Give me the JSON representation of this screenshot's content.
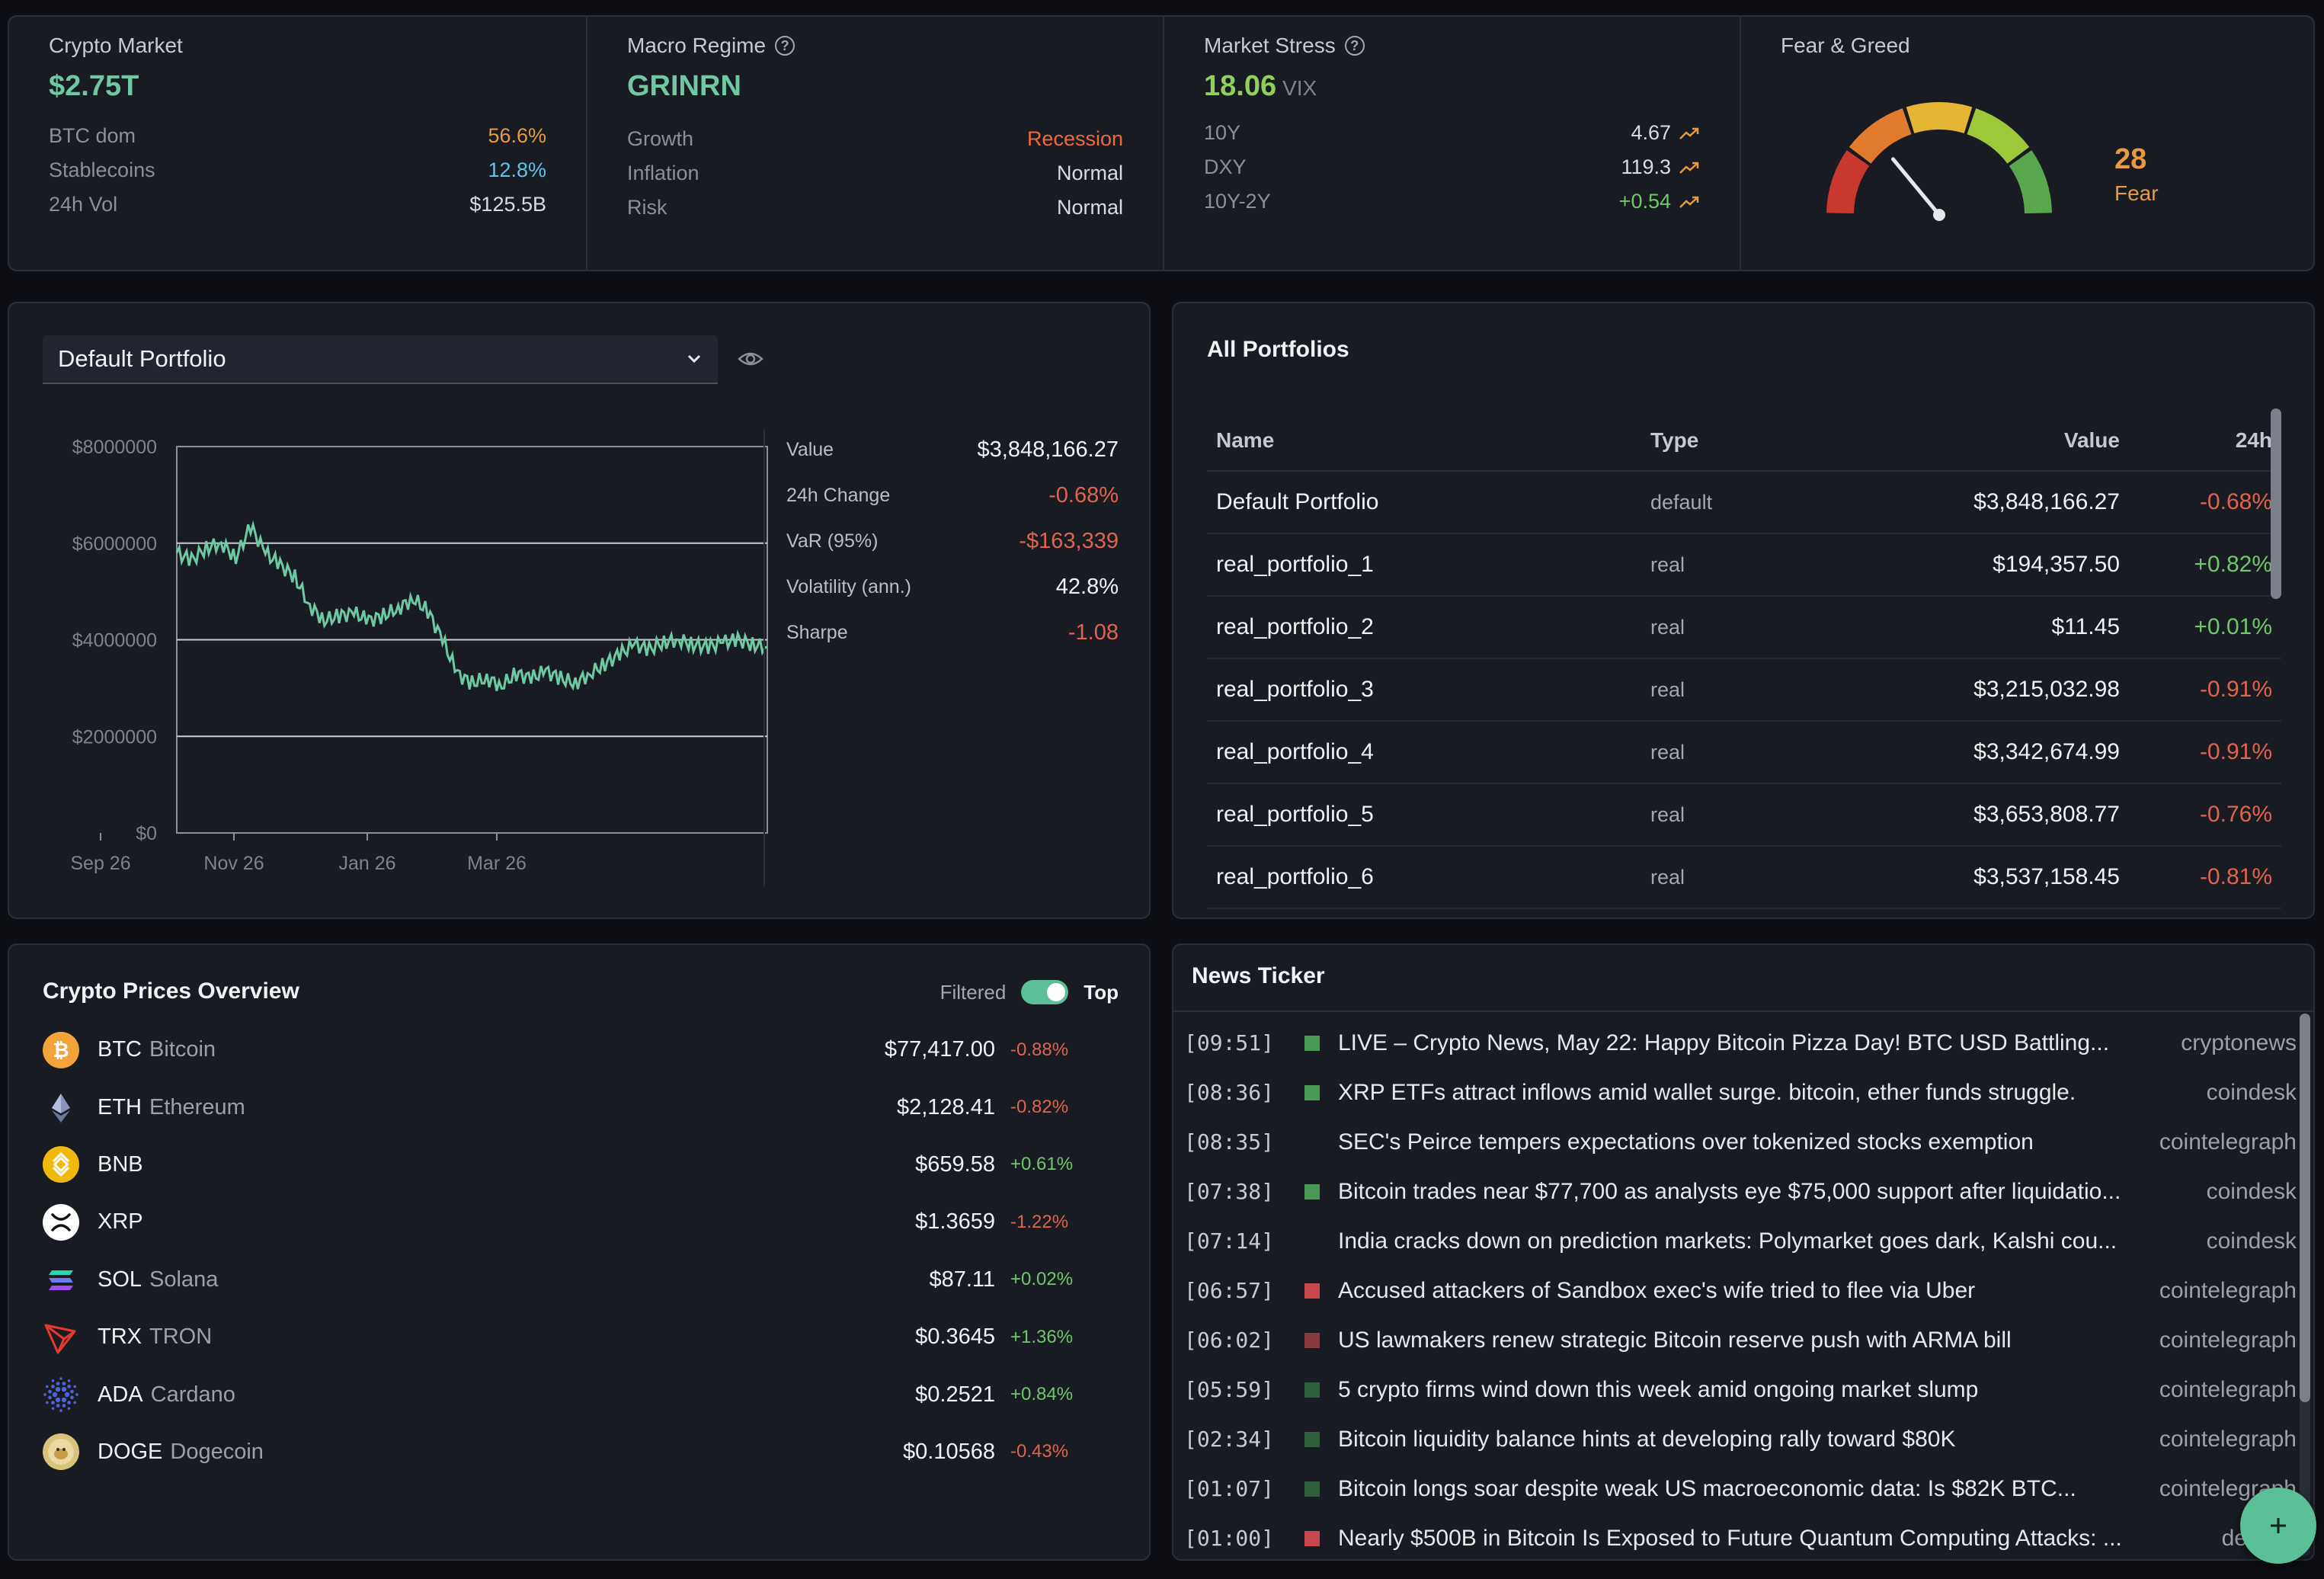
{
  "top": {
    "crypto_market": {
      "label": "Crypto Market",
      "value": "$2.75T",
      "rows": [
        {
          "k": "BTC dom",
          "v": "56.6%",
          "color": "orange"
        },
        {
          "k": "Stablecoins",
          "v": "12.8%",
          "color": "blue"
        },
        {
          "k": "24h Vol",
          "v": "$125.5B",
          "color": "default"
        }
      ]
    },
    "macro_regime": {
      "label": "Macro Regime",
      "value": "GRINRN",
      "rows": [
        {
          "k": "Growth",
          "v": "Recession",
          "color": "redorange"
        },
        {
          "k": "Inflation",
          "v": "Normal",
          "color": "default"
        },
        {
          "k": "Risk",
          "v": "Normal",
          "color": "default"
        }
      ]
    },
    "market_stress": {
      "label": "Market Stress",
      "value": "18.06",
      "unit": "VIX",
      "rows": [
        {
          "k": "10Y",
          "v": "4.67",
          "color": "default",
          "icon": "trend-up-icon"
        },
        {
          "k": "DXY",
          "v": "119.3",
          "color": "default",
          "icon": "trend-up-icon"
        },
        {
          "k": "10Y-2Y",
          "v": "+0.54",
          "color": "green",
          "icon": "trend-up-icon"
        }
      ]
    },
    "fear_greed": {
      "label": "Fear & Greed",
      "value": "28",
      "level": "Fear",
      "score": 28,
      "max": 100,
      "colors": [
        "#c8382f",
        "#e27a2e",
        "#e5b534",
        "#9cc839",
        "#5aa64c"
      ],
      "accent": "#e89a43"
    }
  },
  "portfolio": {
    "selected": "Default Portfolio",
    "chart_data": {
      "type": "line",
      "y_ticks": [
        "$8000000",
        "$6000000",
        "$4000000",
        "$2000000",
        "$0"
      ],
      "x_ticks": [
        "Sep 26",
        "Nov 26",
        "Jan 26",
        "Mar 26"
      ],
      "ylim": [
        0,
        8000000
      ],
      "color": "#6ec9a2",
      "x": [
        0,
        10,
        20,
        30,
        40,
        50,
        60,
        70,
        80,
        90,
        100,
        110,
        120,
        130,
        140,
        150,
        160,
        170,
        180,
        190,
        200,
        210,
        220,
        230,
        240,
        250,
        260,
        270,
        280,
        290,
        300,
        310,
        320,
        330,
        340,
        350,
        360,
        370,
        380,
        390,
        400
      ],
      "values": [
        5800000,
        5650000,
        5900000,
        6000000,
        5700000,
        6350000,
        5800000,
        5550000,
        5300000,
        4700000,
        4400000,
        4500000,
        4550000,
        4400000,
        4500000,
        4650000,
        4850000,
        4600000,
        4000000,
        3300000,
        3100000,
        3200000,
        3050000,
        3300000,
        3200000,
        3350000,
        3200000,
        3100000,
        3300000,
        3500000,
        3700000,
        3900000,
        3800000,
        3950000,
        4000000,
        3900000,
        3850000,
        3950000,
        4000000,
        3900000,
        3850000
      ]
    },
    "stats": [
      {
        "k": "Value",
        "v": "$3,848,166.27",
        "color": "default"
      },
      {
        "k": "24h Change",
        "v": "-0.68%",
        "color": "red"
      },
      {
        "k": "VaR (95%)",
        "v": "-$163,339",
        "color": "red"
      },
      {
        "k": "Volatility (ann.)",
        "v": "42.8%",
        "color": "default"
      },
      {
        "k": "Sharpe",
        "v": "-1.08",
        "color": "red"
      }
    ]
  },
  "all_portfolios": {
    "title": "All Portfolios",
    "headers": {
      "name": "Name",
      "type": "Type",
      "value": "Value",
      "change": "24h"
    },
    "rows": [
      {
        "name": "Default Portfolio",
        "type": "default",
        "value": "$3,848,166.27",
        "change": "-0.68%",
        "color": "red"
      },
      {
        "name": "real_portfolio_1",
        "type": "real",
        "value": "$194,357.50",
        "change": "+0.82%",
        "color": "green"
      },
      {
        "name": "real_portfolio_2",
        "type": "real",
        "value": "$11.45",
        "change": "+0.01%",
        "color": "green"
      },
      {
        "name": "real_portfolio_3",
        "type": "real",
        "value": "$3,215,032.98",
        "change": "-0.91%",
        "color": "red"
      },
      {
        "name": "real_portfolio_4",
        "type": "real",
        "value": "$3,342,674.99",
        "change": "-0.91%",
        "color": "red"
      },
      {
        "name": "real_portfolio_5",
        "type": "real",
        "value": "$3,653,808.77",
        "change": "-0.76%",
        "color": "red"
      },
      {
        "name": "real_portfolio_6",
        "type": "real",
        "value": "$3,537,158.45",
        "change": "-0.81%",
        "color": "red"
      }
    ]
  },
  "crypto_prices": {
    "title": "Crypto Prices Overview",
    "toggle_off_label": "Filtered",
    "toggle_on_label": "Top",
    "coins": [
      {
        "symbol": "BTC",
        "name": "Bitcoin",
        "price": "$77,417.00",
        "change": "-0.88%",
        "color": "red",
        "icon": "bitcoin-icon"
      },
      {
        "symbol": "ETH",
        "name": "Ethereum",
        "price": "$2,128.41",
        "change": "-0.82%",
        "color": "red",
        "icon": "ethereum-icon"
      },
      {
        "symbol": "BNB",
        "name": "",
        "price": "$659.58",
        "change": "+0.61%",
        "color": "green",
        "icon": "bnb-icon"
      },
      {
        "symbol": "XRP",
        "name": "",
        "price": "$1.3659",
        "change": "-1.22%",
        "color": "red",
        "icon": "xrp-icon"
      },
      {
        "symbol": "SOL",
        "name": "Solana",
        "price": "$87.11",
        "change": "+0.02%",
        "color": "green",
        "icon": "solana-icon"
      },
      {
        "symbol": "TRX",
        "name": "TRON",
        "price": "$0.3645",
        "change": "+1.36%",
        "color": "green",
        "icon": "tron-icon"
      },
      {
        "symbol": "ADA",
        "name": "Cardano",
        "price": "$0.2521",
        "change": "+0.84%",
        "color": "green",
        "icon": "cardano-icon"
      },
      {
        "symbol": "DOGE",
        "name": "Dogecoin",
        "price": "$0.10568",
        "change": "-0.43%",
        "color": "red",
        "icon": "dogecoin-icon"
      }
    ]
  },
  "news": {
    "title": "News Ticker",
    "items": [
      {
        "time": "[09:51]",
        "sentiment": "positive",
        "text": "LIVE – Crypto News, May 22: Happy Bitcoin Pizza Day! BTC USD Battling...",
        "source": "cryptonews"
      },
      {
        "time": "[08:36]",
        "sentiment": "positive",
        "text": "XRP ETFs attract inflows amid wallet surge. bitcoin, ether funds struggle.",
        "source": "coindesk"
      },
      {
        "time": "[08:35]",
        "sentiment": "neutral",
        "text": "SEC's Peirce tempers expectations over tokenized stocks exemption",
        "source": "cointelegraph"
      },
      {
        "time": "[07:38]",
        "sentiment": "positive",
        "text": "Bitcoin trades near $77,700 as analysts eye $75,000 support after liquidatio...",
        "source": "coindesk"
      },
      {
        "time": "[07:14]",
        "sentiment": "neutral",
        "text": "India cracks down on prediction markets: Polymarket goes dark, Kalshi cou...",
        "source": "coindesk"
      },
      {
        "time": "[06:57]",
        "sentiment": "negative",
        "text": "Accused attackers of Sandbox exec's wife tried to flee via Uber",
        "source": "cointelegraph"
      },
      {
        "time": "[06:02]",
        "sentiment": "negative-dim",
        "text": "US lawmakers renew strategic Bitcoin reserve push with ARMA bill",
        "source": "cointelegraph"
      },
      {
        "time": "[05:59]",
        "sentiment": "positive-dim",
        "text": "5 crypto firms wind down this week amid ongoing market slump",
        "source": "cointelegraph"
      },
      {
        "time": "[02:34]",
        "sentiment": "positive-dim",
        "text": "Bitcoin liquidity balance hints at developing rally toward $80K",
        "source": "cointelegraph"
      },
      {
        "time": "[01:07]",
        "sentiment": "positive-dim",
        "text": "Bitcoin longs soar despite weak US macroeconomic data: Is $82K BTC...",
        "source": "cointelegraph"
      },
      {
        "time": "[01:00]",
        "sentiment": "negative",
        "text": "Nearly $500B in Bitcoin Is Exposed to Future Quantum Computing Attacks: ...",
        "source": "decrypt"
      }
    ],
    "sentiment_colors": {
      "positive": "#4a9a55",
      "positive-dim": "#2f5e3a",
      "negative": "#c8474d",
      "negative-dim": "#8a3a3e",
      "neutral": "transparent"
    }
  }
}
